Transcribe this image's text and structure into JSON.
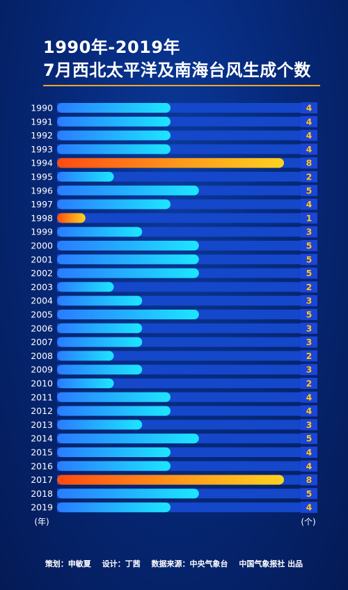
{
  "title_line1": "1990年-2019年",
  "title_line2": "7月西北太平洋及南海台风生成个数",
  "footer": {
    "planning": "策划：申敏夏",
    "design": "设计：丁茜",
    "source": "数据来源：中央气象台",
    "publisher": "中国气象报社 出品"
  },
  "colors": {
    "bar_blue_start": "#2a7cff",
    "bar_blue_end": "#1ce6ff",
    "bar_hot_start": "#ff4a12",
    "bar_hot_end": "#ffd21f",
    "track": "#1447c9",
    "value_box": "#1a45d6",
    "value_text": "#ffc61a",
    "accent_line": "#f6a623"
  },
  "chart_data": {
    "type": "bar",
    "orientation": "horizontal",
    "xlabel": "(年)",
    "ylabel": "(个)",
    "xlim": [
      0,
      8
    ],
    "categories": [
      "1990",
      "1991",
      "1992",
      "1993",
      "1994",
      "1995",
      "1996",
      "1997",
      "1998",
      "1999",
      "2000",
      "2001",
      "2002",
      "2003",
      "2004",
      "2005",
      "2006",
      "2007",
      "2008",
      "2009",
      "2010",
      "2011",
      "2012",
      "2013",
      "2014",
      "2015",
      "2016",
      "2017",
      "2018",
      "2019"
    ],
    "values": [
      4,
      4,
      4,
      4,
      8,
      2,
      5,
      4,
      1,
      3,
      5,
      5,
      5,
      2,
      3,
      5,
      3,
      3,
      2,
      3,
      2,
      4,
      4,
      3,
      5,
      4,
      4,
      8,
      5,
      4
    ]
  }
}
